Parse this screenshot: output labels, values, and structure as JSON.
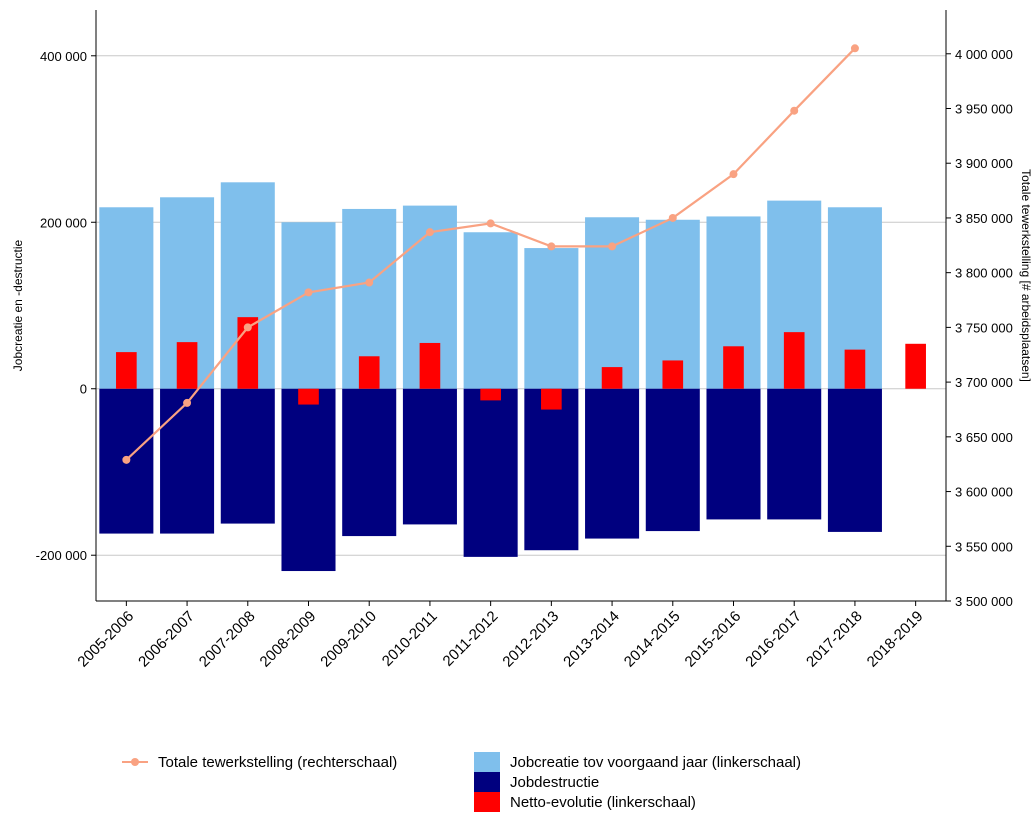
{
  "chart_data": {
    "type": "bar",
    "title": "",
    "categories": [
      "2005-2006",
      "2006-2007",
      "2007-2008",
      "2008-2009",
      "2009-2010",
      "2010-2011",
      "2011-2012",
      "2012-2013",
      "2013-2014",
      "2014-2015",
      "2015-2016",
      "2016-2017",
      "2017-2018",
      "2018-2019"
    ],
    "ylabel_left": "Jobcreatie en -destructie",
    "ylabel_right": "Totale tewerkstelling [# arbeidsplaatsen]",
    "ylim_left": [
      -255000,
      455000
    ],
    "ylim_right": [
      3500000,
      4040000
    ],
    "left_ticks": [
      -200000,
      0,
      200000,
      400000
    ],
    "left_tick_labels": [
      "-200 000",
      "0",
      "200 000",
      "400 000"
    ],
    "right_ticks": [
      3500000,
      3550000,
      3600000,
      3650000,
      3700000,
      3750000,
      3800000,
      3850000,
      3900000,
      3950000,
      4000000
    ],
    "right_tick_labels": [
      "3 500 000",
      "3 550 000",
      "3 600 000",
      "3 650 000",
      "3 700 000",
      "3 750 000",
      "3 800 000",
      "3 850 000",
      "3 900 000",
      "3 950 000",
      "4 000 000"
    ],
    "grid": "horizontal",
    "legend_position": "bottom",
    "series": [
      {
        "name": "Jobcreatie tov voorgaand jaar (linkerschaal)",
        "kind": "bar",
        "axis": "left",
        "color": "#7fbfec",
        "values": [
          218000,
          230000,
          248000,
          200000,
          216000,
          220000,
          188000,
          169000,
          206000,
          203000,
          207000,
          226000,
          218000,
          null
        ]
      },
      {
        "name": "Jobdestructie",
        "kind": "bar",
        "axis": "left",
        "color": "#00007f",
        "values": [
          -174000,
          -174000,
          -162000,
          -219000,
          -177000,
          -163000,
          -202000,
          -194000,
          -180000,
          -171000,
          -157000,
          -157000,
          -172000,
          null
        ]
      },
      {
        "name": "Netto-evolutie (linkerschaal)",
        "kind": "bar",
        "axis": "left",
        "color": "#ff0000",
        "values": [
          44000,
          56000,
          86000,
          -19000,
          39000,
          55000,
          -14000,
          -25000,
          26000,
          34000,
          51000,
          68000,
          47000,
          54000
        ]
      },
      {
        "name": "Totale tewerkstelling (rechterschaal)",
        "kind": "line",
        "axis": "right",
        "color": "#f9a282",
        "values": [
          3629000,
          3681000,
          3750000,
          3782000,
          3791000,
          3837000,
          3845000,
          3824000,
          3824000,
          3850000,
          3890000,
          3948000,
          4005000,
          null
        ]
      }
    ]
  }
}
